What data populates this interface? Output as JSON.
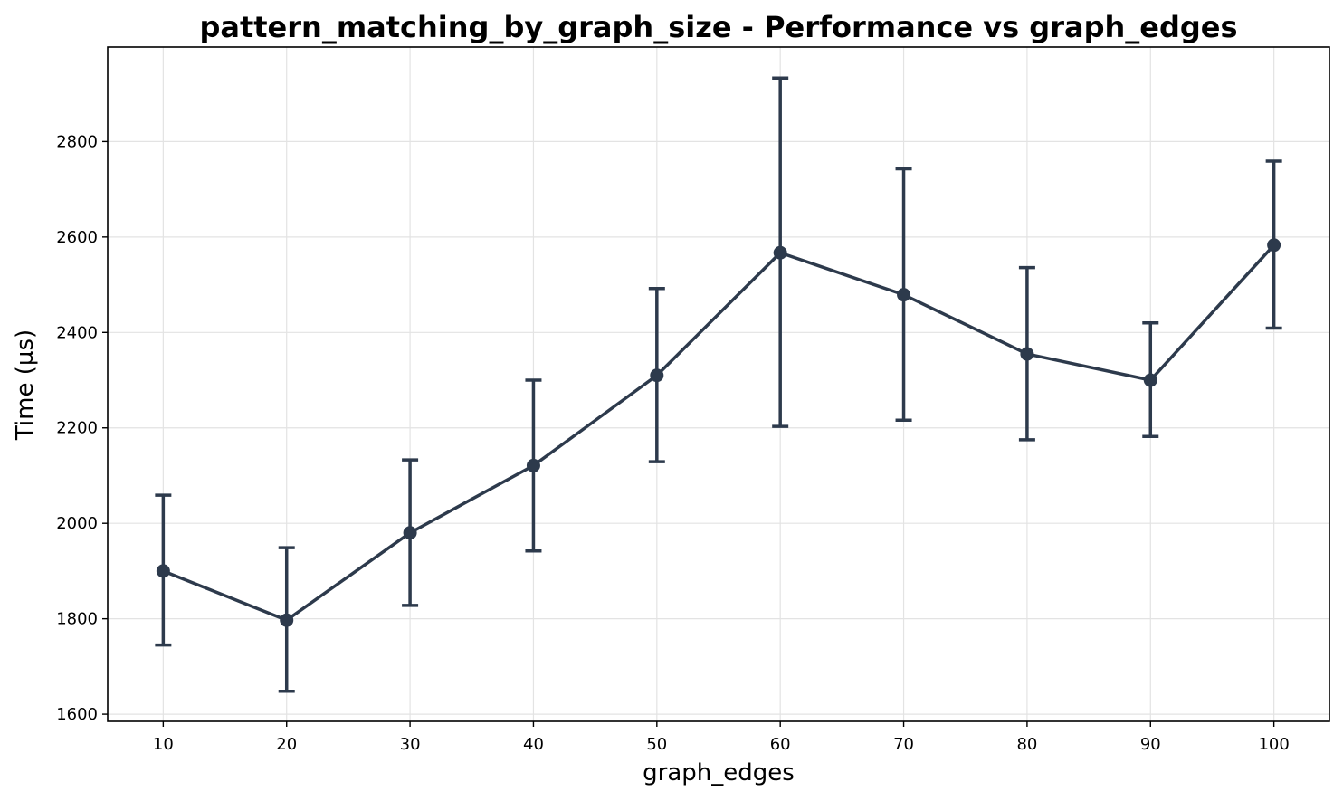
{
  "chart_data": {
    "type": "line",
    "title": "pattern_matching_by_graph_size - Performance vs graph_edges",
    "xlabel": "graph_edges",
    "ylabel": "Time (µs)",
    "x": [
      10,
      20,
      30,
      40,
      50,
      60,
      70,
      80,
      90,
      100
    ],
    "x_ticks": [
      "10",
      "20",
      "30",
      "40",
      "50",
      "60",
      "70",
      "80",
      "90",
      "100"
    ],
    "y_ticks": [
      "1600",
      "1800",
      "2000",
      "2200",
      "2400",
      "2600",
      "2800"
    ],
    "xlim": [
      5.5,
      104.5
    ],
    "ylim": [
      1585,
      2998
    ],
    "grid": true,
    "series": [
      {
        "values": [
          1900,
          1797,
          1980,
          2121,
          2310,
          2567,
          2479,
          2355,
          2300,
          2583
        ],
        "err_low": [
          1745,
          1648,
          1828,
          1942,
          2129,
          2203,
          2216,
          2175,
          2182,
          2409
        ],
        "err_high": [
          2059,
          1949,
          2133,
          2300,
          2492,
          2933,
          2743,
          2536,
          2420,
          2759
        ],
        "color": "#2d3a4c"
      }
    ]
  }
}
